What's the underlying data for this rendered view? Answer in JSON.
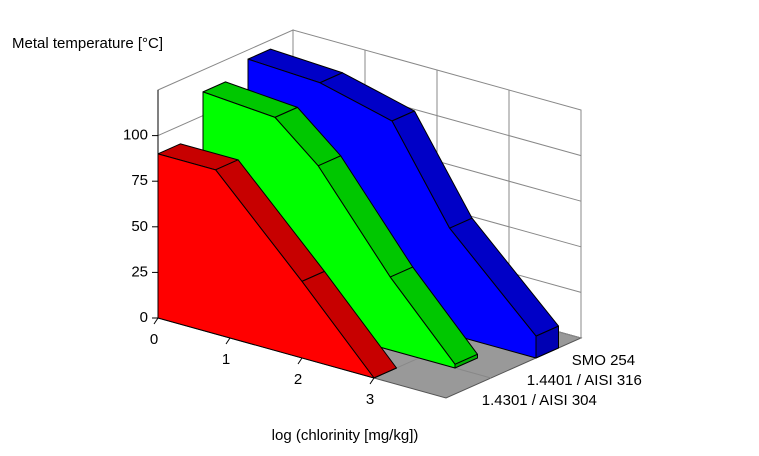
{
  "chart_data": {
    "type": "area3d",
    "y_label": "Metal temperature [°C]",
    "x_label": "log (chlorinity [mg/kg])",
    "xlim": [
      0,
      4
    ],
    "xticks": [
      0,
      1,
      2,
      3
    ],
    "ylim": [
      0,
      125
    ],
    "yticks": [
      0,
      25,
      50,
      75,
      100
    ],
    "grid": true,
    "series": [
      {
        "name": "1.4301 / AISI 304",
        "color": "#ff0000",
        "x": [
          0,
          0.8,
          2,
          3
        ],
        "values": [
          90,
          90,
          42,
          0
        ]
      },
      {
        "name": "1.4401 / AISI 316",
        "color": "#00ff00",
        "x": [
          0,
          1,
          1.6,
          2.6,
          3.5
        ],
        "values": [
          113,
          110,
          90,
          40,
          2
        ]
      },
      {
        "name": "SMO 254",
        "color": "#0000ff",
        "x": [
          0,
          1,
          2,
          2.8,
          4
        ],
        "values": [
          120,
          118,
          108,
          58,
          12
        ]
      }
    ]
  }
}
